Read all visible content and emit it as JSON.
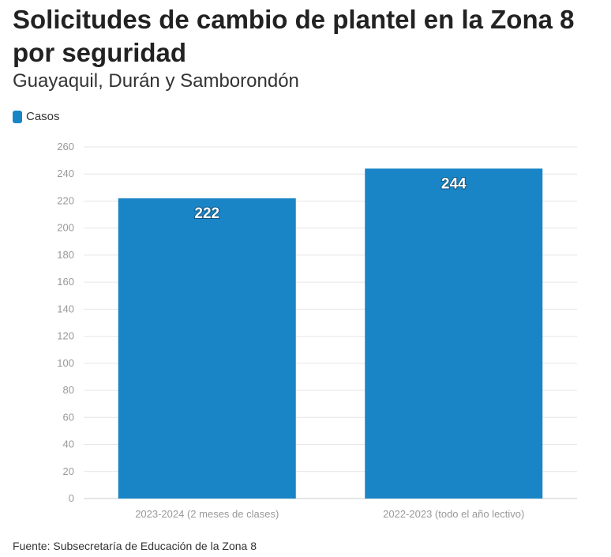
{
  "title": "Solicitudes de cambio de plantel en la Zona 8 por seguridad",
  "subtitle": "Guayaquil, Durán y Samborondón",
  "source": "Fuente: Subsecretaría de Educación de la Zona 8",
  "chart_data": {
    "type": "bar",
    "categories": [
      "2023-2024 (2 meses de clases)",
      "2022-2023 (todo el año lectivo)"
    ],
    "series": [
      {
        "name": "Casos",
        "values": [
          222,
          244
        ],
        "color": "#1a85c6"
      }
    ],
    "ylim": [
      0,
      260
    ],
    "yticks": [
      0,
      20,
      40,
      60,
      80,
      100,
      120,
      140,
      160,
      180,
      200,
      220,
      240,
      260
    ],
    "grid": true,
    "legend_position": "top-left",
    "data_labels": true
  }
}
